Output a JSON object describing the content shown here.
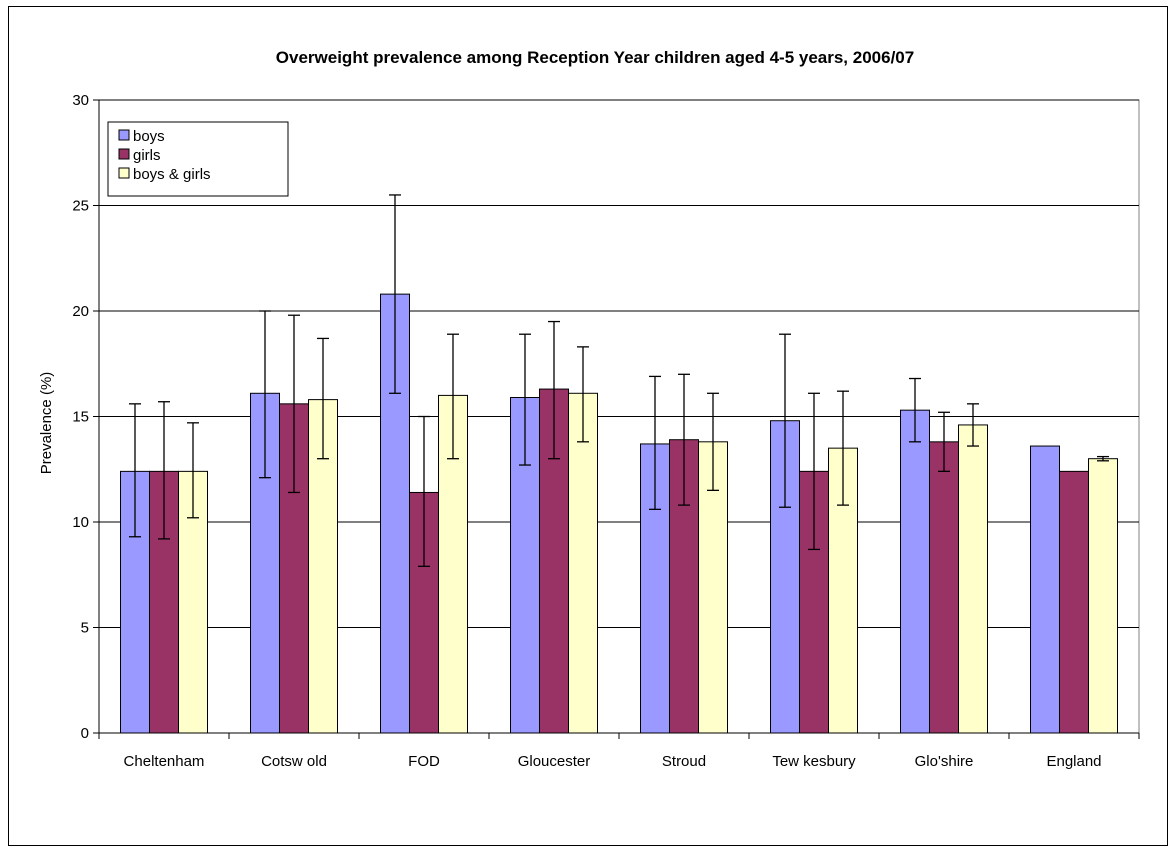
{
  "chart_data": {
    "type": "bar",
    "title": "Overweight prevalence among Reception Year children aged 4-5 years, 2006/07",
    "xlabel": "",
    "ylabel": "Prevalence (%)",
    "ylim": [
      0,
      30
    ],
    "yticks": [
      "0",
      "5",
      "10",
      "15",
      "20",
      "25",
      "30"
    ],
    "grid": true,
    "legend_position": "top-left",
    "categories": [
      "Cheltenham",
      "Cotsw old",
      "FOD",
      "Gloucester",
      "Stroud",
      "Tew kesbury",
      "Glo'shire",
      "England"
    ],
    "series": [
      {
        "name": "boys",
        "color": "#9999ff",
        "values": [
          12.4,
          16.1,
          20.8,
          15.9,
          13.7,
          14.8,
          15.3,
          13.6
        ],
        "error_low": [
          9.3,
          12.1,
          16.1,
          12.7,
          10.6,
          10.7,
          13.8,
          null
        ],
        "error_high": [
          15.6,
          20.0,
          25.5,
          18.9,
          16.9,
          18.9,
          16.8,
          null
        ]
      },
      {
        "name": "girls",
        "color": "#993366",
        "values": [
          12.4,
          15.6,
          11.4,
          16.3,
          13.9,
          12.4,
          13.8,
          12.4
        ],
        "error_low": [
          9.2,
          11.4,
          7.9,
          13.0,
          10.8,
          8.7,
          12.4,
          null
        ],
        "error_high": [
          15.7,
          19.8,
          15.0,
          19.5,
          17.0,
          16.1,
          15.2,
          null
        ]
      },
      {
        "name": "boys & girls",
        "color": "#ffffcc",
        "values": [
          12.4,
          15.8,
          16.0,
          16.1,
          13.8,
          13.5,
          14.6,
          13.0
        ],
        "error_low": [
          10.2,
          13.0,
          13.0,
          13.8,
          11.5,
          10.8,
          13.6,
          12.9
        ],
        "error_high": [
          14.7,
          18.7,
          18.9,
          18.3,
          16.1,
          16.2,
          15.6,
          13.1
        ]
      }
    ]
  }
}
